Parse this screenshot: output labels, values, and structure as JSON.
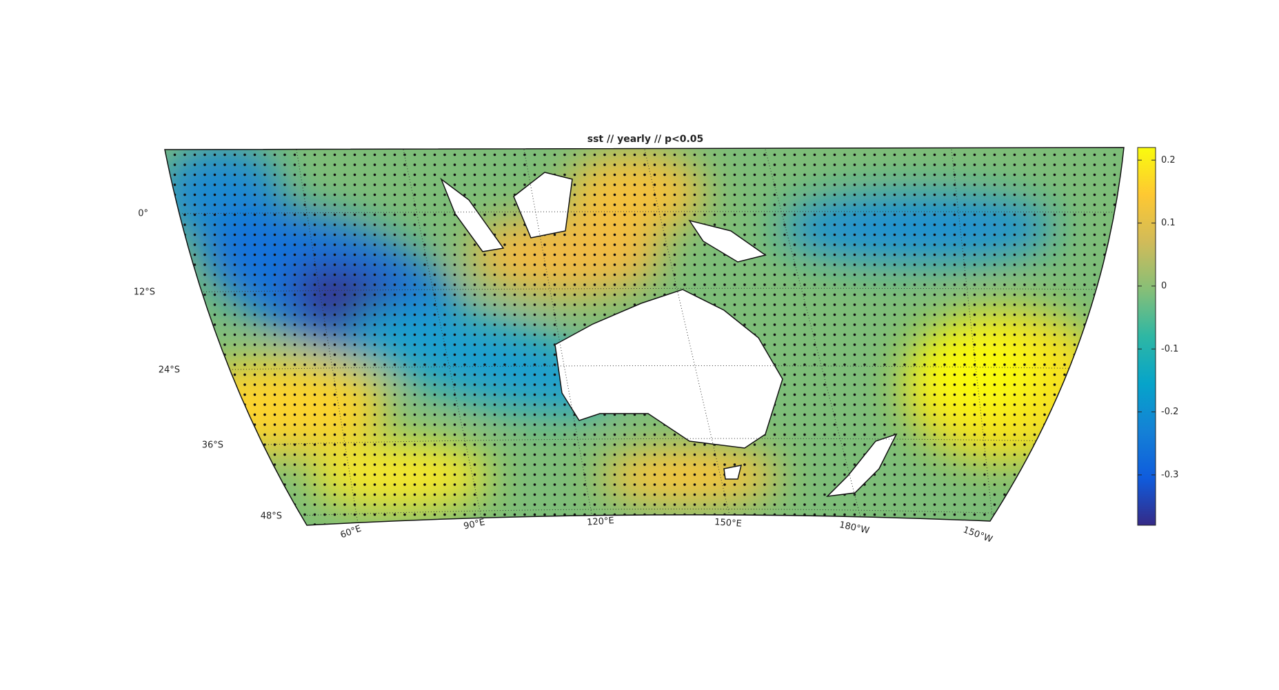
{
  "chart_data": {
    "type": "map",
    "title": "sst // yearly // p<0.05",
    "lat_labels": [
      "0°",
      "12°S",
      "24°S",
      "36°S",
      "48°S"
    ],
    "lon_labels": [
      "60°E",
      "90°E",
      "120°E",
      "150°E",
      "180°W",
      "150°W"
    ],
    "colorbar": {
      "ylim": [
        -0.38,
        0.22
      ],
      "yticks": [
        0.2,
        0.1,
        0,
        -0.1,
        -0.2,
        -0.3
      ],
      "colors": [
        "#352a87",
        "#0f5cdd",
        "#1481d6",
        "#06a4ca",
        "#2eb7a4",
        "#87bf77",
        "#d1bb59",
        "#fec832",
        "#f9fb0e"
      ]
    }
  }
}
